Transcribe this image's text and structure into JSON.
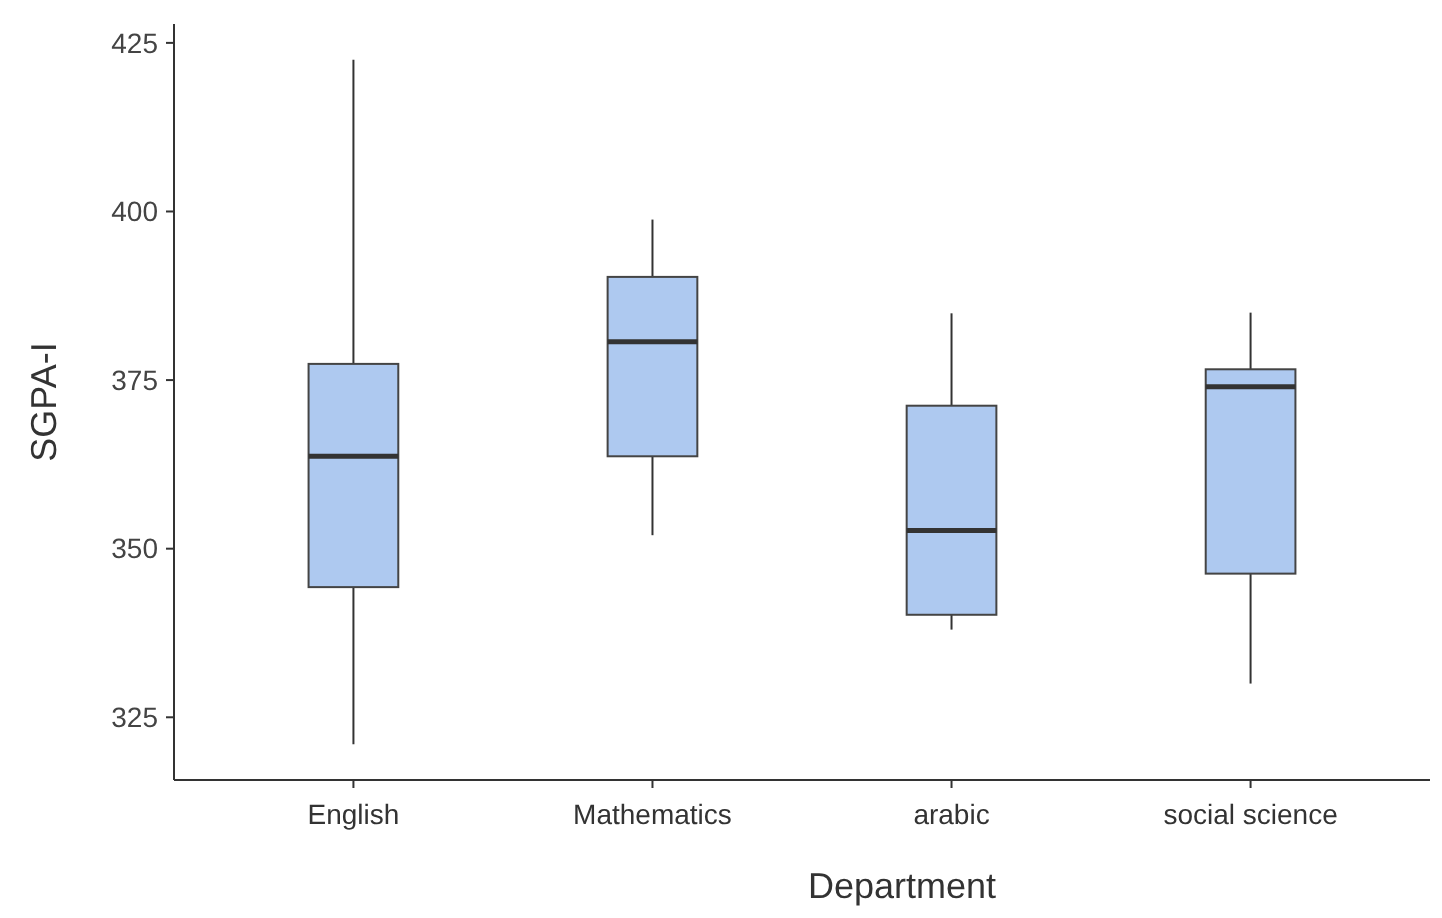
{
  "chart_data": {
    "type": "box",
    "xlabel": "Department",
    "ylabel": "SGPA-I",
    "categories": [
      "English",
      "Mathematics",
      "arabic",
      "social science"
    ],
    "series": [
      {
        "color": "#aec9f0",
        "boxes": [
          {
            "low": 321,
            "q1": 344.3,
            "median": 363.7,
            "q3": 377.4,
            "high": 422.5
          },
          {
            "low": 352,
            "q1": 363.7,
            "median": 380.7,
            "q3": 390.3,
            "high": 398.8
          },
          {
            "low": 338,
            "q1": 340.2,
            "median": 352.7,
            "q3": 371.2,
            "high": 384.9
          },
          {
            "low": 330,
            "q1": 346.3,
            "median": 374,
            "q3": 376.6,
            "high": 385
          }
        ]
      }
    ],
    "ylim": [
      315.7,
      427.8
    ],
    "yticks": [
      325,
      350,
      375,
      400,
      425
    ]
  }
}
